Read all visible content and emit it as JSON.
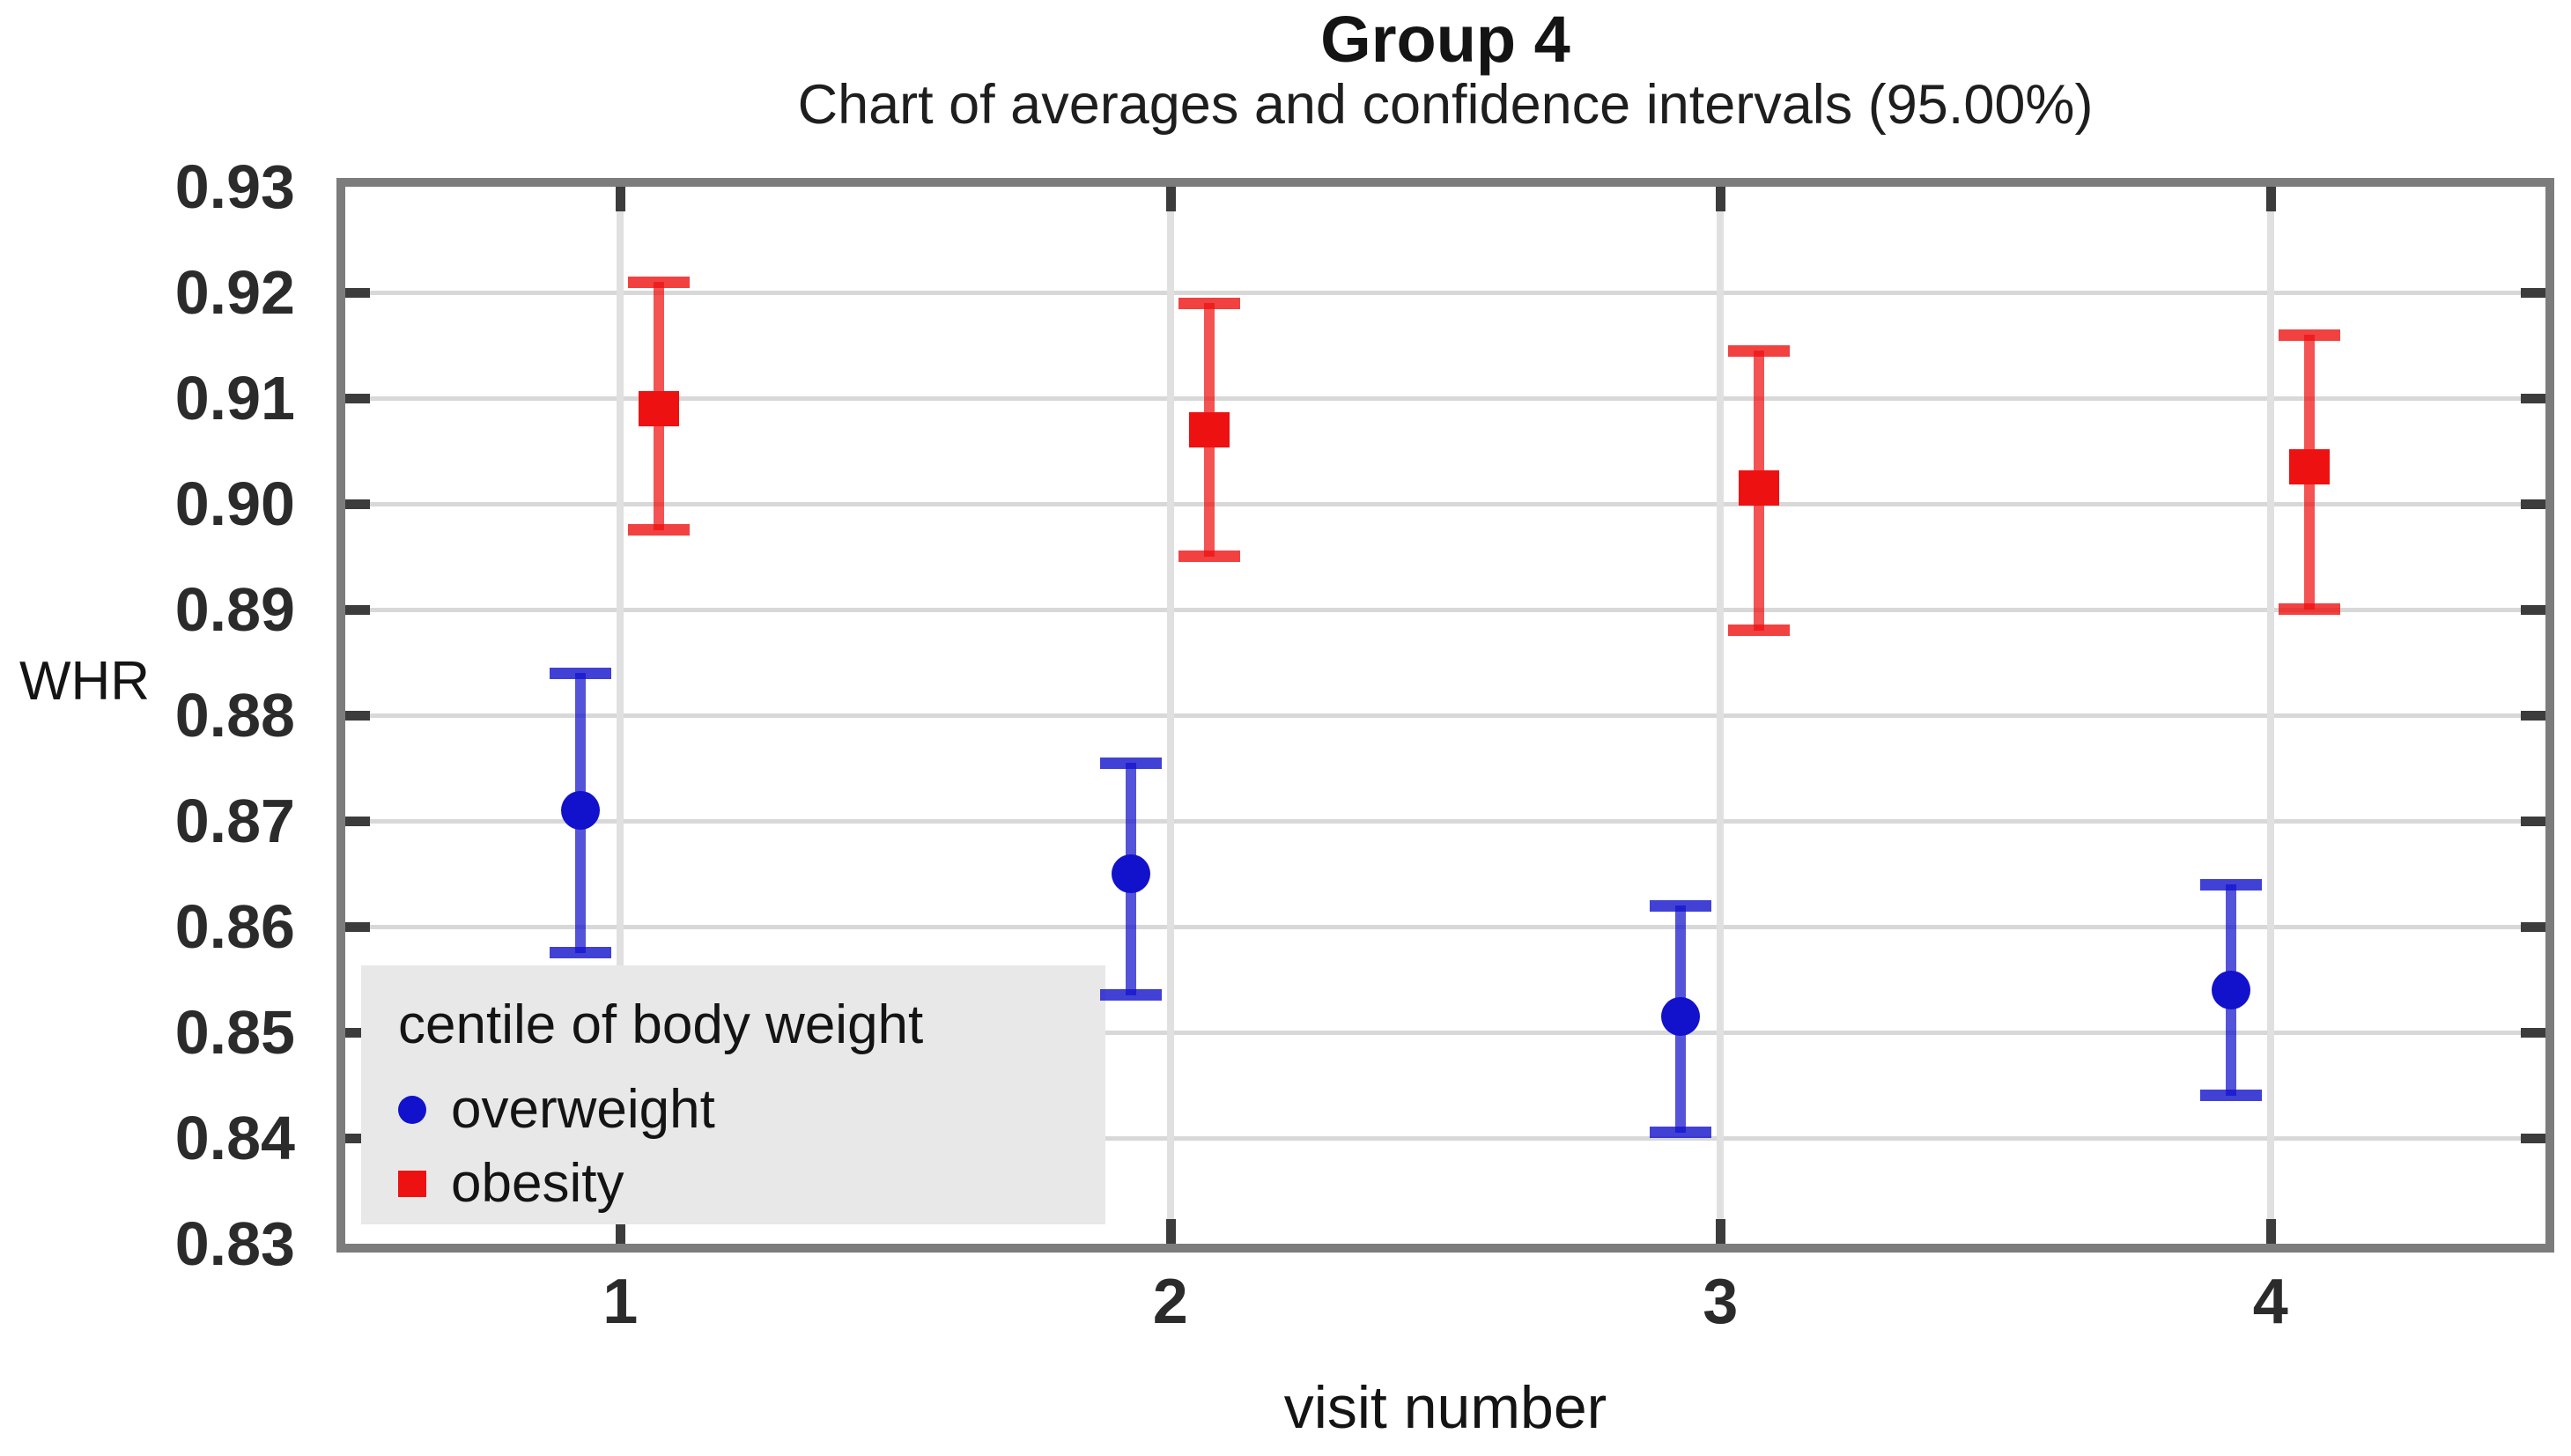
{
  "title": "Group 4",
  "subtitle": "Chart of averages and confidence intervals (95.00%)",
  "y_axis": {
    "label": "WHR",
    "min": 0.83,
    "max": 0.93,
    "tick_step": 0.01,
    "tick_labels": [
      "0.93",
      "0.92",
      "0.91",
      "0.90",
      "0.89",
      "0.88",
      "0.87",
      "0.86",
      "0.85",
      "0.84",
      "0.83"
    ]
  },
  "x_axis": {
    "label": "visit number",
    "tick_labels": [
      "1",
      "2",
      "3",
      "4"
    ]
  },
  "legend": {
    "title": "centile of body weight",
    "items": [
      {
        "label": "overweight",
        "marker": "circle",
        "color": "#1212cc"
      },
      {
        "label": "obesity",
        "marker": "square",
        "color": "#ee1111"
      }
    ]
  },
  "chart_data": {
    "type": "scatter",
    "subtype": "means-with-95pct-confidence-intervals",
    "x": [
      1,
      2,
      3,
      4
    ],
    "xlabel": "visit number",
    "ylabel": "WHR",
    "ylim": [
      0.83,
      0.93
    ],
    "grid": true,
    "legend_position": "bottom-left-inside",
    "confidence_level": "95.00%",
    "series": [
      {
        "name": "overweight",
        "marker": "circle",
        "color": "#1212cc",
        "means": [
          0.871,
          0.865,
          0.8515,
          0.854
        ],
        "ci_low": [
          0.8575,
          0.8535,
          0.8405,
          0.844
        ],
        "ci_high": [
          0.884,
          0.8755,
          0.862,
          0.864
        ]
      },
      {
        "name": "obesity",
        "marker": "square",
        "color": "#ee1111",
        "means": [
          0.909,
          0.907,
          0.9015,
          0.9035
        ],
        "ci_low": [
          0.8975,
          0.895,
          0.888,
          0.89
        ],
        "ci_high": [
          0.921,
          0.919,
          0.9145,
          0.916
        ]
      }
    ]
  }
}
